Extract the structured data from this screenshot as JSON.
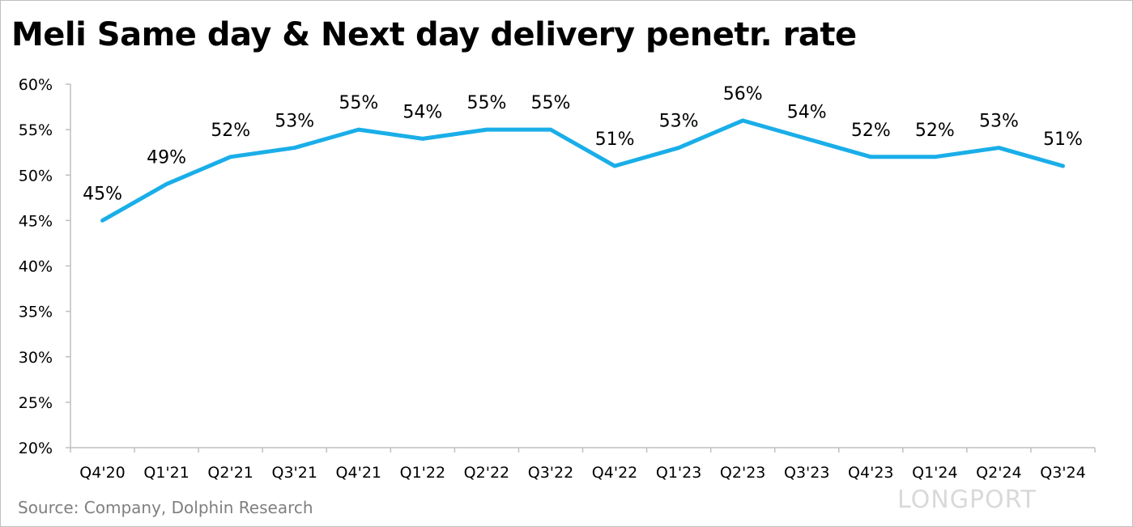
{
  "header": {
    "title": "Meli Same day & Next day delivery penetr. rate"
  },
  "footer": {
    "source": "Source: Company, Dolphin Research",
    "watermark": "LONGPORT"
  },
  "colors": {
    "line": "#1aaee8",
    "axis": "#bfbfbf",
    "text": "#000000"
  },
  "chart_data": {
    "type": "line",
    "title": "Meli Same day & Next day delivery penetr. rate",
    "categories": [
      "Q4'20",
      "Q1'21",
      "Q2'21",
      "Q3'21",
      "Q4'21",
      "Q1'22",
      "Q2'22",
      "Q3'22",
      "Q4'22",
      "Q1'23",
      "Q2'23",
      "Q3'23",
      "Q4'23",
      "Q1'24",
      "Q2'24",
      "Q3'24"
    ],
    "series": [
      {
        "values": [
          45,
          49,
          52,
          53,
          55,
          54,
          55,
          55,
          51,
          53,
          56,
          54,
          52,
          52,
          53,
          51
        ]
      }
    ],
    "data_labels": [
      "45%",
      "49%",
      "52%",
      "53%",
      "55%",
      "54%",
      "55%",
      "55%",
      "51%",
      "53%",
      "56%",
      "54%",
      "52%",
      "52%",
      "53%",
      "51%"
    ],
    "y_ticks": [
      "20%",
      "25%",
      "30%",
      "35%",
      "40%",
      "45%",
      "50%",
      "55%",
      "60%"
    ],
    "ylim": [
      20,
      60
    ],
    "ylabel": "",
    "xlabel": "",
    "grid": false,
    "legend": "none"
  }
}
